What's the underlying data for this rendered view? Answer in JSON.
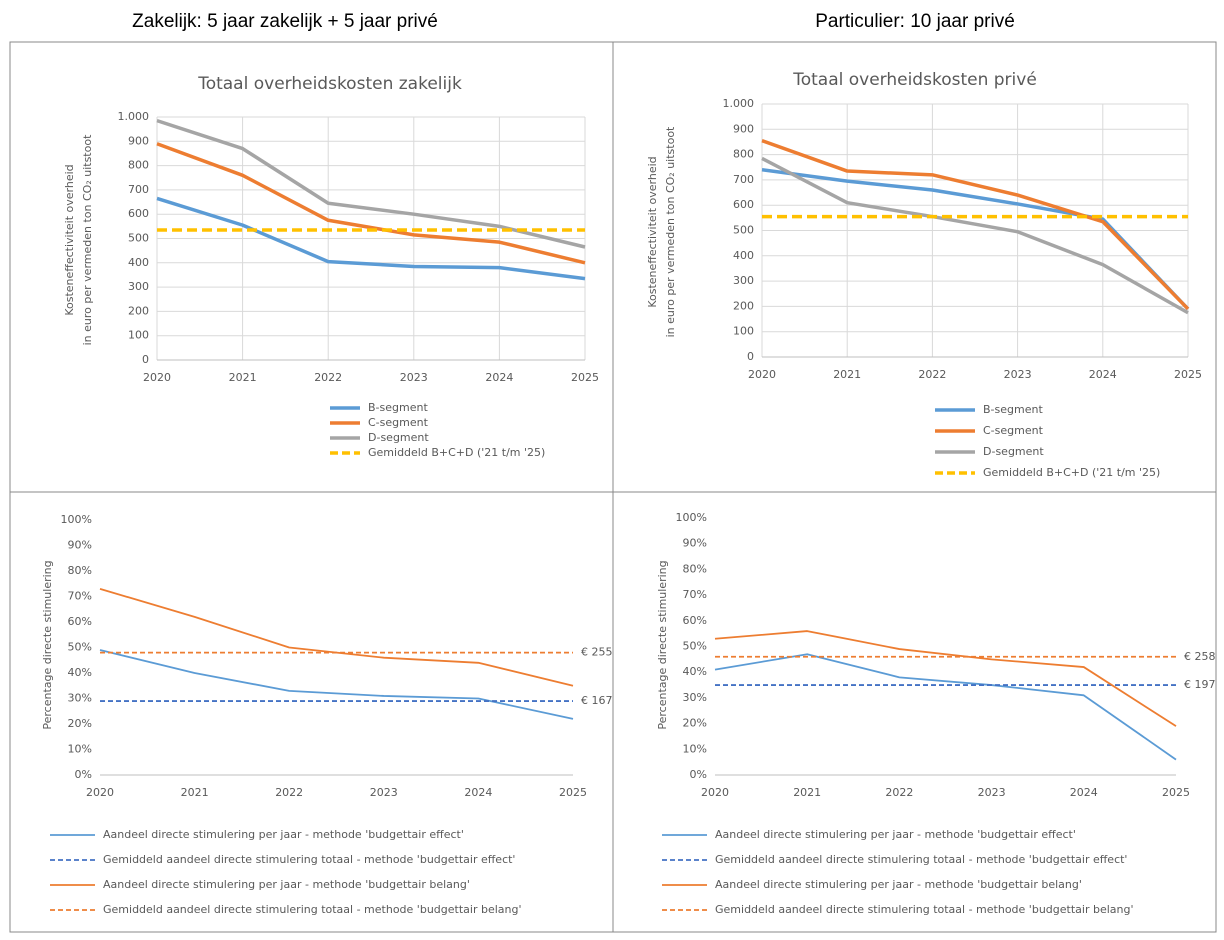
{
  "column_headers": [
    "Zakelijk: 5 jaar zakelijk + 5 jaar privé",
    "Particulier: 10 jaar privé"
  ],
  "chart_data": [
    {
      "type": "line",
      "title": "Totaal overheidskosten zakelijk",
      "y_label": [
        "Kosteneffectiviteit overheid",
        "in euro per vermeden ton CO₂ uitstoot"
      ],
      "categories": [
        "2020",
        "2021",
        "2022",
        "2023",
        "2024",
        "2025"
      ],
      "ylim": [
        0,
        1000
      ],
      "yticks": [
        0,
        100,
        200,
        300,
        400,
        500,
        600,
        700,
        800,
        900,
        {
          "value": 1000,
          "label": "1.000"
        }
      ],
      "grid": true,
      "legend": "bottom",
      "series": [
        {
          "name": "B-segment",
          "color": "#5b9bd5",
          "values": [
            665,
            555,
            405,
            385,
            380,
            335
          ]
        },
        {
          "name": "C-segment",
          "color": "#ed7d31",
          "values": [
            890,
            760,
            575,
            515,
            485,
            400
          ]
        },
        {
          "name": "D-segment",
          "color": "#a5a5a5",
          "values": [
            985,
            870,
            645,
            600,
            550,
            465
          ]
        },
        {
          "name": "Gemiddeld B+C+D ('21 t/m '25)",
          "color": "#ffc000",
          "dash": true,
          "values": [
            535,
            535,
            535,
            535,
            535,
            535
          ]
        }
      ]
    },
    {
      "type": "line",
      "title": "Totaal overheidskosten privé",
      "y_label": [
        "Kosteneffectiviteit overheid",
        "in euro per vermeden ton CO₂ uitstoot"
      ],
      "categories": [
        "2020",
        "2021",
        "2022",
        "2023",
        "2024",
        "2025"
      ],
      "ylim": [
        0,
        1000
      ],
      "yticks": [
        0,
        100,
        200,
        300,
        400,
        500,
        600,
        700,
        800,
        900,
        {
          "value": 1000,
          "label": "1.000"
        }
      ],
      "grid": true,
      "legend": "bottom",
      "series": [
        {
          "name": "B-segment",
          "color": "#5b9bd5",
          "values": [
            740,
            695,
            660,
            605,
            545,
            190
          ]
        },
        {
          "name": "C-segment",
          "color": "#ed7d31",
          "values": [
            855,
            735,
            720,
            640,
            535,
            190
          ]
        },
        {
          "name": "D-segment",
          "color": "#a5a5a5",
          "values": [
            785,
            610,
            555,
            495,
            365,
            175
          ]
        },
        {
          "name": "Gemiddeld B+C+D ('21 t/m '25)",
          "color": "#ffc000",
          "dash": true,
          "values": [
            555,
            555,
            555,
            555,
            555,
            555
          ]
        }
      ]
    },
    {
      "type": "line",
      "y_label": [
        "Percentage directe stimulering"
      ],
      "categories": [
        "2020",
        "2021",
        "2022",
        "2023",
        "2024",
        "2025"
      ],
      "ylim": [
        0,
        100
      ],
      "yticks": [
        {
          "value": 0,
          "label": "0%"
        },
        {
          "value": 10,
          "label": "10%"
        },
        {
          "value": 20,
          "label": "20%"
        },
        {
          "value": 30,
          "label": "30%"
        },
        {
          "value": 40,
          "label": "40%"
        },
        {
          "value": 50,
          "label": "50%"
        },
        {
          "value": 60,
          "label": "60%"
        },
        {
          "value": 70,
          "label": "70%"
        },
        {
          "value": 80,
          "label": "80%"
        },
        {
          "value": 90,
          "label": "90%"
        },
        {
          "value": 100,
          "label": "100%"
        }
      ],
      "grid": false,
      "legend": "bottom",
      "series": [
        {
          "name": "Aandeel directe stimulering per jaar - methode 'budgettair effect'",
          "color": "#5b9bd5",
          "values": [
            49,
            40,
            33,
            31,
            30,
            22
          ]
        },
        {
          "name": "Gemiddeld aandeel directe stimulering totaal - methode 'budgettair effect'",
          "color": "#4472c4",
          "dash": true,
          "values": [
            29,
            29,
            29,
            29,
            29,
            29
          ],
          "end_label": "€ 167"
        },
        {
          "name": "Aandeel directe stimulering per jaar - methode 'budgettair belang'",
          "color": "#ed7d31",
          "values": [
            73,
            62,
            50,
            46,
            44,
            35
          ]
        },
        {
          "name": "Gemiddeld aandeel directe stimulering totaal - methode 'budgettair belang'",
          "color": "#ed7d31",
          "dash": true,
          "values": [
            48,
            48,
            48,
            48,
            48,
            48
          ],
          "end_label": "€ 255"
        }
      ]
    },
    {
      "type": "line",
      "y_label": [
        "Percentage directe stimulering"
      ],
      "categories": [
        "2020",
        "2021",
        "2022",
        "2023",
        "2024",
        "2025"
      ],
      "ylim": [
        0,
        100
      ],
      "yticks": [
        {
          "value": 0,
          "label": "0%"
        },
        {
          "value": 10,
          "label": "10%"
        },
        {
          "value": 20,
          "label": "20%"
        },
        {
          "value": 30,
          "label": "30%"
        },
        {
          "value": 40,
          "label": "40%"
        },
        {
          "value": 50,
          "label": "50%"
        },
        {
          "value": 60,
          "label": "60%"
        },
        {
          "value": 70,
          "label": "70%"
        },
        {
          "value": 80,
          "label": "80%"
        },
        {
          "value": 90,
          "label": "90%"
        },
        {
          "value": 100,
          "label": "100%"
        }
      ],
      "grid": false,
      "legend": "bottom",
      "series": [
        {
          "name": "Aandeel directe stimulering per jaar - methode 'budgettair effect'",
          "color": "#5b9bd5",
          "values": [
            41,
            47,
            38,
            35,
            31,
            6
          ]
        },
        {
          "name": "Gemiddeld aandeel directe stimulering totaal - methode 'budgettair effect'",
          "color": "#4472c4",
          "dash": true,
          "values": [
            35,
            35,
            35,
            35,
            35,
            35
          ],
          "end_label": "€ 197"
        },
        {
          "name": "Aandeel directe stimulering per jaar - methode 'budgettair belang'",
          "color": "#ed7d31",
          "values": [
            53,
            56,
            49,
            45,
            42,
            19
          ]
        },
        {
          "name": "Gemiddeld aandeel directe stimulering totaal - methode 'budgettair belang'",
          "color": "#ed7d31",
          "dash": true,
          "values": [
            46,
            46,
            46,
            46,
            46,
            46
          ],
          "end_label": "€ 258"
        }
      ]
    }
  ]
}
